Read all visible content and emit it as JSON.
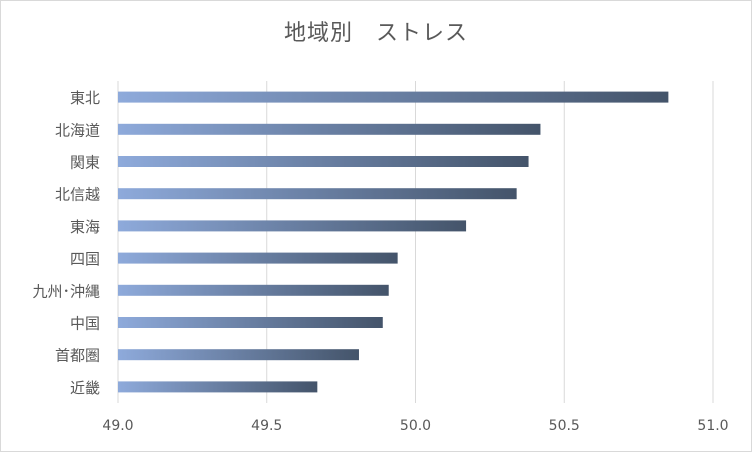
{
  "chart_data": {
    "type": "bar",
    "orientation": "horizontal",
    "title": "地域別　ストレス",
    "categories": [
      "東北",
      "北海道",
      "関東",
      "北信越",
      "東海",
      "四国",
      "九州･沖縄",
      "中国",
      "首都圏",
      "近畿"
    ],
    "values": [
      50.85,
      50.42,
      50.38,
      50.34,
      50.17,
      49.94,
      49.91,
      49.89,
      49.81,
      49.67
    ],
    "xlim": [
      49.0,
      51.0
    ],
    "xticks": [
      "49.0",
      "49.5",
      "50.0",
      "50.5",
      "51.0"
    ],
    "grid": "vertical",
    "legend": "none",
    "colors": {
      "bar_start": "#8eaadb",
      "bar_end": "#44546a",
      "grid": "#d9d9d9",
      "text": "#595959"
    }
  }
}
